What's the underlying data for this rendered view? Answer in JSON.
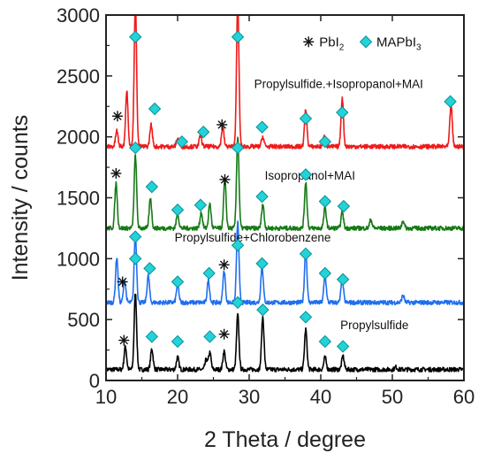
{
  "chart_data": {
    "type": "line",
    "xlabel": "2 Theta / degree",
    "ylabel": "Intensity / counts",
    "xlim": [
      10,
      60
    ],
    "ylim": [
      0,
      3000
    ],
    "x_ticks": [
      10,
      20,
      30,
      40,
      50,
      60
    ],
    "y_ticks": [
      0,
      500,
      1000,
      1500,
      2000,
      2500,
      3000
    ],
    "legend": [
      {
        "marker": "asterisk",
        "text": "PbI",
        "sub": "2"
      },
      {
        "marker": "diamond",
        "text": "MAPbI",
        "sub": "3"
      }
    ],
    "legend_position": "top-right",
    "series": [
      {
        "name": "Propylsulfide",
        "color": "#000000",
        "baseline": 90,
        "peaks": [
          [
            12.7,
            280
          ],
          [
            14.1,
            720
          ],
          [
            16.4,
            260
          ],
          [
            20.0,
            190
          ],
          [
            24.0,
            170
          ],
          [
            24.5,
            230
          ],
          [
            26.5,
            240
          ],
          [
            28.4,
            540
          ],
          [
            31.9,
            520
          ],
          [
            37.9,
            420
          ],
          [
            40.6,
            190
          ],
          [
            43.1,
            200
          ],
          [
            50.5,
            110
          ]
        ],
        "markers": [
          {
            "x": 12.5,
            "y": 330,
            "kind": "asterisk"
          },
          {
            "x": 14.1,
            "y": 1000,
            "kind": "diamond"
          },
          {
            "x": 16.4,
            "y": 360,
            "kind": "diamond"
          },
          {
            "x": 20.0,
            "y": 320,
            "kind": "diamond"
          },
          {
            "x": 24.5,
            "y": 360,
            "kind": "diamond"
          },
          {
            "x": 26.5,
            "y": 380,
            "kind": "asterisk"
          },
          {
            "x": 28.4,
            "y": 640,
            "kind": "diamond"
          },
          {
            "x": 31.9,
            "y": 580,
            "kind": "diamond"
          },
          {
            "x": 37.9,
            "y": 520,
            "kind": "diamond"
          },
          {
            "x": 40.6,
            "y": 320,
            "kind": "diamond"
          },
          {
            "x": 43.1,
            "y": 280,
            "kind": "diamond"
          }
        ],
        "label": "Propylsulfide",
        "label_pos": [
          47.5,
          420
        ]
      },
      {
        "name": "Propylsulfide+Chlorobenzene",
        "color": "#1f6ff0",
        "baseline": 640,
        "peaks": [
          [
            11.5,
            1010
          ],
          [
            12.6,
            820
          ],
          [
            14.1,
            1200
          ],
          [
            15.9,
            860
          ],
          [
            20.0,
            790
          ],
          [
            24.3,
            820
          ],
          [
            26.5,
            900
          ],
          [
            28.4,
            1300
          ],
          [
            31.8,
            940
          ],
          [
            37.9,
            1070
          ],
          [
            40.6,
            860
          ],
          [
            43.0,
            830
          ],
          [
            51.5,
            700
          ]
        ],
        "markers": [
          {
            "x": 12.3,
            "y": 810,
            "kind": "asterisk"
          },
          {
            "x": 14.1,
            "y": 1180,
            "kind": "diamond"
          },
          {
            "x": 16.1,
            "y": 920,
            "kind": "diamond"
          },
          {
            "x": 20.0,
            "y": 810,
            "kind": "diamond"
          },
          {
            "x": 24.4,
            "y": 880,
            "kind": "diamond"
          },
          {
            "x": 26.5,
            "y": 950,
            "kind": "asterisk"
          },
          {
            "x": 28.4,
            "y": 1110,
            "kind": "diamond"
          },
          {
            "x": 31.8,
            "y": 960,
            "kind": "diamond"
          },
          {
            "x": 37.9,
            "y": 1040,
            "kind": "diamond"
          },
          {
            "x": 40.6,
            "y": 880,
            "kind": "diamond"
          },
          {
            "x": 43.1,
            "y": 830,
            "kind": "diamond"
          }
        ],
        "label": "Propylsulfide+Chlorobenzene",
        "label_pos": [
          30.5,
          1140
        ]
      },
      {
        "name": "Isopropanol+MAI",
        "color": "#157a15",
        "baseline": 1250,
        "peaks": [
          [
            11.4,
            1620
          ],
          [
            14.1,
            1850
          ],
          [
            16.2,
            1500
          ],
          [
            20.0,
            1370
          ],
          [
            23.3,
            1380
          ],
          [
            24.5,
            1450
          ],
          [
            26.6,
            1650
          ],
          [
            28.4,
            2000
          ],
          [
            31.9,
            1450
          ],
          [
            37.9,
            1630
          ],
          [
            40.6,
            1420
          ],
          [
            43.0,
            1380
          ],
          [
            47.0,
            1320
          ],
          [
            51.5,
            1310
          ]
        ],
        "markers": [
          {
            "x": 11.4,
            "y": 1700,
            "kind": "asterisk"
          },
          {
            "x": 14.1,
            "y": 1910,
            "kind": "diamond"
          },
          {
            "x": 16.4,
            "y": 1590,
            "kind": "diamond"
          },
          {
            "x": 20.0,
            "y": 1400,
            "kind": "diamond"
          },
          {
            "x": 23.2,
            "y": 1440,
            "kind": "diamond"
          },
          {
            "x": 26.6,
            "y": 1650,
            "kind": "asterisk"
          },
          {
            "x": 28.4,
            "y": 1910,
            "kind": "diamond"
          },
          {
            "x": 31.8,
            "y": 1510,
            "kind": "diamond"
          },
          {
            "x": 37.9,
            "y": 1690,
            "kind": "diamond"
          },
          {
            "x": 40.6,
            "y": 1470,
            "kind": "diamond"
          },
          {
            "x": 43.2,
            "y": 1430,
            "kind": "diamond"
          }
        ],
        "label": "Isopropanol+MAI",
        "label_pos": [
          38.5,
          1650
        ]
      },
      {
        "name": "Propylsulfide.+Isopropanol+MAI",
        "color": "#f01a1a",
        "baseline": 1920,
        "peaks": [
          [
            11.5,
            2050
          ],
          [
            12.9,
            2380
          ],
          [
            14.1,
            3100
          ],
          [
            16.3,
            2100
          ],
          [
            20.0,
            1990
          ],
          [
            23.2,
            2010
          ],
          [
            26.3,
            2080
          ],
          [
            28.4,
            3100
          ],
          [
            31.9,
            2000
          ],
          [
            37.9,
            2230
          ],
          [
            40.5,
            2000
          ],
          [
            43.0,
            2320
          ],
          [
            58.2,
            2260
          ]
        ],
        "markers": [
          {
            "x": 11.6,
            "y": 2170,
            "kind": "asterisk"
          },
          {
            "x": 14.1,
            "y": 2820,
            "kind": "diamond"
          },
          {
            "x": 16.8,
            "y": 2230,
            "kind": "diamond"
          },
          {
            "x": 20.6,
            "y": 1960,
            "kind": "diamond"
          },
          {
            "x": 23.6,
            "y": 2040,
            "kind": "diamond"
          },
          {
            "x": 26.2,
            "y": 2100,
            "kind": "asterisk"
          },
          {
            "x": 28.4,
            "y": 2820,
            "kind": "diamond"
          },
          {
            "x": 31.8,
            "y": 2080,
            "kind": "diamond"
          },
          {
            "x": 37.9,
            "y": 2150,
            "kind": "diamond"
          },
          {
            "x": 40.6,
            "y": 1960,
            "kind": "diamond"
          },
          {
            "x": 43.0,
            "y": 2200,
            "kind": "diamond"
          },
          {
            "x": 58.1,
            "y": 2290,
            "kind": "diamond"
          }
        ],
        "label": "Propylsulfide.+Isopropanol+MAI",
        "label_pos": [
          42.5,
          2400
        ]
      }
    ]
  },
  "colors": {
    "diamond_fill": "#22d3d8",
    "diamond_stroke": "#0c8f94",
    "axis": "#222222"
  }
}
